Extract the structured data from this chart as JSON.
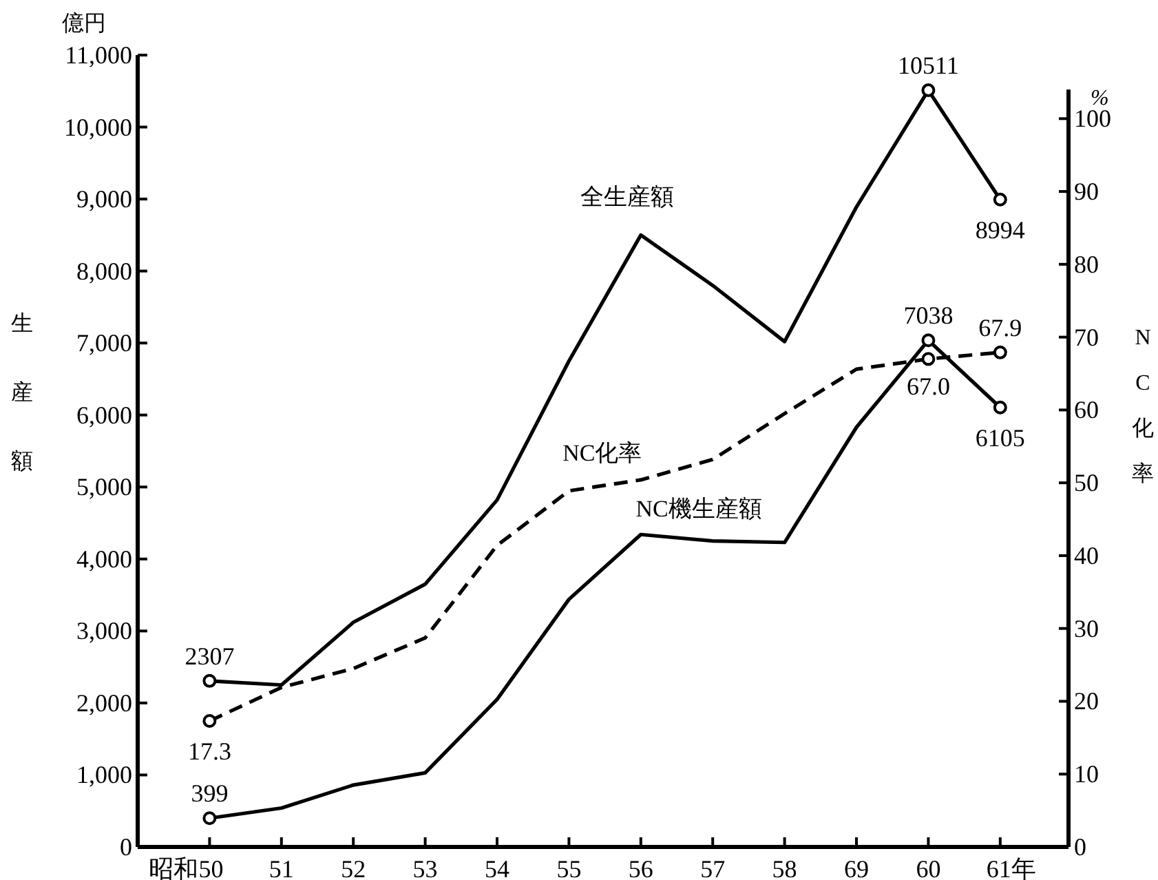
{
  "chart_data": {
    "type": "line",
    "categories": [
      "昭和50",
      "51",
      "52",
      "53",
      "54",
      "55",
      "56",
      "57",
      "58",
      "69",
      "60",
      "61年"
    ],
    "ylabel": "生産額",
    "y2label": "NC化率",
    "annotations": [
      "億円",
      "%"
    ],
    "ylim": [
      0,
      11000
    ],
    "yticks": [
      {
        "value": 0,
        "label": "0"
      },
      {
        "value": 1000,
        "label": "1,000"
      },
      {
        "value": 2000,
        "label": "2,000"
      },
      {
        "value": 3000,
        "label": "3,000"
      },
      {
        "value": 4000,
        "label": "4,000"
      },
      {
        "value": 5000,
        "label": "5,000"
      },
      {
        "value": 6000,
        "label": "6,000"
      },
      {
        "value": 7000,
        "label": "7,000"
      },
      {
        "value": 8000,
        "label": "8,000"
      },
      {
        "value": 9000,
        "label": "9,000"
      },
      {
        "value": 10000,
        "label": "10,000"
      },
      {
        "value": 11000,
        "label": "11,000"
      }
    ],
    "y2lim": [
      0,
      104
    ],
    "y2ticks": [
      0,
      10,
      20,
      30,
      40,
      50,
      60,
      70,
      80,
      90,
      100
    ],
    "grid": false,
    "series": [
      {
        "name": "全生産額",
        "color": "#000000",
        "line_style": "solid",
        "values": [
          2307,
          2250,
          3120,
          3650,
          4820,
          6750,
          8500,
          7800,
          7020,
          8890,
          10511,
          8994
        ],
        "value_labels": [
          "2307",
          null,
          null,
          null,
          null,
          null,
          null,
          null,
          null,
          null,
          "10511",
          "8994"
        ]
      },
      {
        "name": "NC化率",
        "color": "#000000",
        "line_style": "dashed",
        "axis": "y2",
        "values": [
          17.3,
          21.9,
          24.5,
          28.7,
          41.4,
          48.9,
          50.4,
          53.2,
          59.5,
          65.6,
          67.0,
          67.9
        ],
        "value_labels": [
          "17.3",
          null,
          null,
          null,
          null,
          null,
          null,
          null,
          null,
          null,
          "67.0",
          "67.9"
        ]
      },
      {
        "name": "NC機生産額",
        "color": "#000000",
        "line_style": "solid",
        "values": [
          399,
          540,
          860,
          1030,
          2050,
          3440,
          4340,
          4250,
          4230,
          5830,
          7038,
          6105
        ],
        "value_labels": [
          "399",
          null,
          null,
          null,
          null,
          null,
          null,
          null,
          null,
          null,
          "7038",
          "6105"
        ]
      }
    ]
  }
}
